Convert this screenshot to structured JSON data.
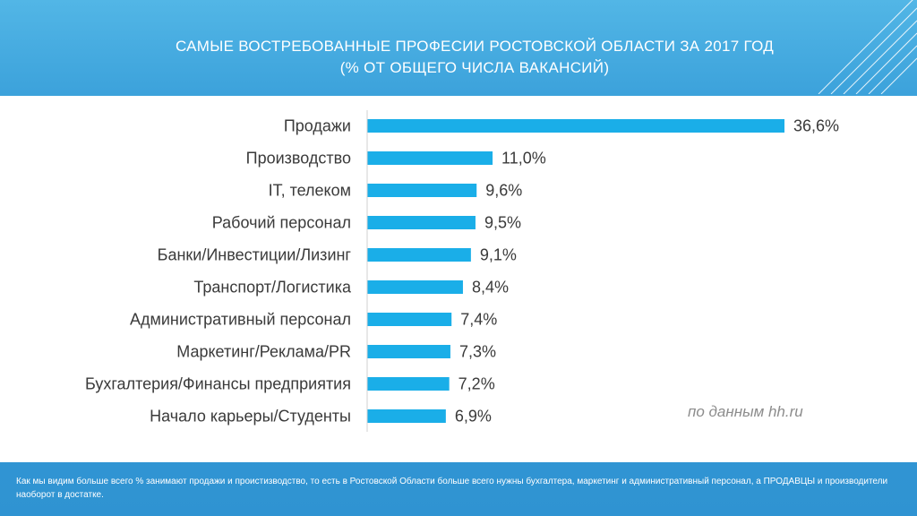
{
  "title_line1": "САМЫЕ ВОСТРЕБОВАННЫЕ ПРОФЕСИИ РОСТОВСКОЙ ОБЛАСТИ ЗА 2017 ГОД",
  "title_line2": "(% ОТ ОБЩЕГО ЧИСЛА ВАКАНСИЙ)",
  "source_note": "по данным hh.ru",
  "footer_text": "Как мы видим  больше всего % занимают продажи и проистизводство, то есть в Ростовской Области больше всего нужны бухгалтера, маркетинг и административный персонал, а ПРОДАВЦЫ и производители наоборот в достатке.",
  "colors": {
    "bar": "#1aaee8",
    "background": "#2e8fcf",
    "panel": "#ffffff",
    "text": "#3a3a3a"
  },
  "chart_data": {
    "type": "bar",
    "orientation": "horizontal",
    "categories": [
      "Продажи",
      "Производство",
      "IT, телеком",
      "Рабочий персонал",
      "Банки/Инвестиции/Лизинг",
      "Транспорт/Логистика",
      "Административный персонал",
      "Маркетинг/Реклама/PR",
      "Бухгалтерия/Финансы предприятия",
      "Начало карьеры/Студенты"
    ],
    "values": [
      36.6,
      11.0,
      9.6,
      9.5,
      9.1,
      8.4,
      7.4,
      7.3,
      7.2,
      6.9
    ],
    "value_labels": [
      "36,6%",
      "11,0%",
      "9,6%",
      "9,5%",
      "9,1%",
      "8,4%",
      "7,4%",
      "7,3%",
      "7,2%",
      "6,9%"
    ],
    "xlim": [
      0,
      36.6
    ],
    "grid": false,
    "legend": "none"
  }
}
